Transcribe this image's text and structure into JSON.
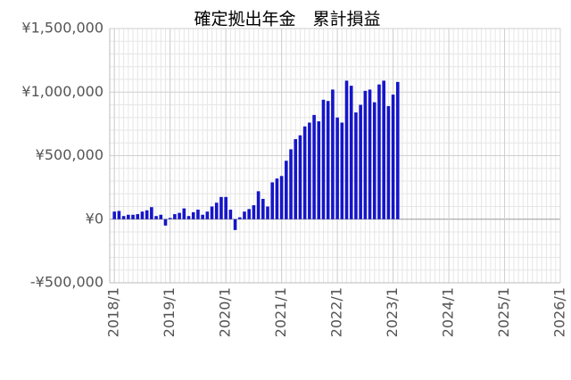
{
  "chart_data": {
    "type": "bar",
    "title": "確定拠出年金　累計損益",
    "x": [
      "2018/1",
      "2018/2",
      "2018/3",
      "2018/4",
      "2018/5",
      "2018/6",
      "2018/7",
      "2018/8",
      "2018/9",
      "2018/10",
      "2018/11",
      "2018/12",
      "2019/1",
      "2019/2",
      "2019/3",
      "2019/4",
      "2019/5",
      "2019/6",
      "2019/7",
      "2019/8",
      "2019/9",
      "2019/10",
      "2019/11",
      "2019/12",
      "2020/1",
      "2020/2",
      "2020/3",
      "2020/4",
      "2020/5",
      "2020/6",
      "2020/7",
      "2020/8",
      "2020/9",
      "2020/10",
      "2020/11",
      "2020/12",
      "2021/1",
      "2021/2",
      "2021/3",
      "2021/4",
      "2021/5",
      "2021/6",
      "2021/7",
      "2021/8",
      "2021/9",
      "2021/10",
      "2021/11",
      "2021/12",
      "2022/1",
      "2022/2",
      "2022/3",
      "2022/4",
      "2022/5",
      "2022/6",
      "2022/7",
      "2022/8",
      "2022/9",
      "2022/10",
      "2022/11",
      "2022/12",
      "2023/1",
      "2023/2"
    ],
    "values": [
      60000,
      65000,
      25000,
      35000,
      35000,
      40000,
      60000,
      70000,
      95000,
      25000,
      35000,
      -50000,
      10000,
      40000,
      50000,
      85000,
      25000,
      55000,
      75000,
      35000,
      60000,
      100000,
      130000,
      175000,
      175000,
      75000,
      -85000,
      15000,
      60000,
      80000,
      110000,
      220000,
      160000,
      100000,
      290000,
      320000,
      340000,
      460000,
      550000,
      630000,
      660000,
      730000,
      760000,
      820000,
      770000,
      940000,
      930000,
      1020000,
      800000,
      760000,
      1090000,
      1050000,
      840000,
      900000,
      1010000,
      1020000,
      920000,
      1060000,
      1090000,
      890000,
      980000,
      1080000
    ],
    "color": "#1515c8",
    "xlim": [
      "2017/12",
      "2026/1"
    ],
    "xticks": [
      "2018/1",
      "2019/1",
      "2020/1",
      "2021/1",
      "2022/1",
      "2023/1",
      "2024/1",
      "2025/1",
      "2026/1"
    ],
    "ylim": [
      -500000,
      1500000
    ],
    "yticks": [
      {
        "value": -500000,
        "label": "-¥500,000"
      },
      {
        "value": 0,
        "label": "¥0"
      },
      {
        "value": 500000,
        "label": "¥500,000"
      },
      {
        "value": 1000000,
        "label": "¥1,000,000"
      },
      {
        "value": 1500000,
        "label": "¥1,500,000"
      }
    ],
    "grid": true
  }
}
